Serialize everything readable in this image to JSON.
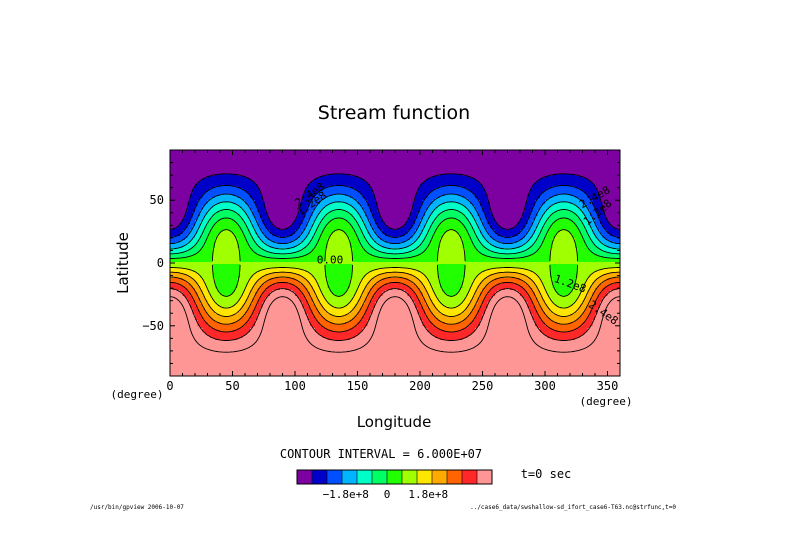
{
  "chart_data": {
    "type": "contour",
    "title": "Stream function",
    "xlabel": "Longitude",
    "ylabel": "Latitude",
    "x_unit": "(degree)",
    "y_unit": "(degree)",
    "xlim": [
      0,
      360
    ],
    "ylim": [
      -90,
      90
    ],
    "x_ticks": [
      0,
      50,
      100,
      150,
      200,
      250,
      300,
      350
    ],
    "y_ticks": [
      50,
      0,
      -50
    ],
    "contour_interval_text": "CONTOUR INTERVAL = 6.000E+07",
    "time_text": "t=0 sec",
    "contour_labels": [
      "2.4e8",
      "1.2e8",
      "0.00",
      "1.2e8",
      "2.4e8",
      "2.4e8",
      "1.2e8",
      "1.2e8",
      "2.4e8"
    ],
    "colorbar": {
      "colors": [
        "#7d00a0",
        "#0000c8",
        "#0050ff",
        "#00b4ff",
        "#00ffc8",
        "#00ff64",
        "#22ff00",
        "#a0ff00",
        "#ffe600",
        "#ffaa00",
        "#ff6400",
        "#ff2828",
        "#ff9696"
      ],
      "tick_labels": [
        "-1.8e+8",
        "0",
        "1.8e+8"
      ],
      "tick_values": [
        -180000000.0,
        0,
        180000000.0
      ]
    },
    "band_levels_1e7": [
      -36,
      -30,
      -24,
      -18,
      -12,
      -6,
      0,
      6,
      12,
      18,
      24,
      30,
      36
    ],
    "wave_number": 4
  },
  "footer": {
    "left": "/usr/bin/gpview  2006-10-07",
    "right": "../case6_data/swshallow-sd_ifort_case6-T63.nc@strfunc,t=0"
  }
}
